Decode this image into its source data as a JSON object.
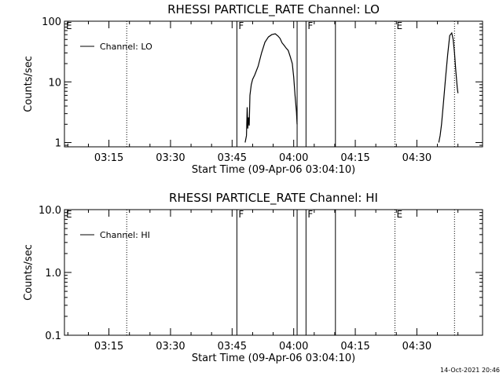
{
  "footer": "14-Oct-2021 20:46",
  "chart_data": [
    {
      "type": "line",
      "title": "RHESSI PARTICLE_RATE Channel: LO",
      "xlabel": "Start Time (09-Apr-06 03:04:10)",
      "ylabel": "Counts/sec",
      "yscale": "log",
      "ylim": [
        0.85,
        100
      ],
      "xlim": [
        "03:04:10",
        "04:46:00"
      ],
      "x_ticks": [
        "03:15",
        "03:30",
        "03:45",
        "04:00",
        "04:15",
        "04:30"
      ],
      "y_ticks": [
        "1",
        "10",
        "100"
      ],
      "legend": [
        "Channel: LO"
      ],
      "legend_position": "top-left",
      "markers": [
        {
          "label": "E",
          "time": "03:04:10",
          "style": "none"
        },
        {
          "label": "",
          "time": "03:19:20",
          "style": "dotted"
        },
        {
          "label": "F",
          "time": "03:46:10",
          "style": "solid"
        },
        {
          "label": "",
          "time": "04:00:50",
          "style": "solid"
        },
        {
          "label": "F",
          "time": "04:03:00",
          "style": "solid"
        },
        {
          "label": "",
          "time": "04:10:10",
          "style": "solid"
        },
        {
          "label": "E",
          "time": "04:24:40",
          "style": "dotted"
        },
        {
          "label": "",
          "time": "04:39:10",
          "style": "dotted"
        }
      ],
      "series": [
        {
          "name": "Channel: LO",
          "segments": [
            [
              [
                "03:48:10",
                1.0
              ],
              [
                "03:48:30",
                1.3
              ],
              [
                "03:48:40",
                3.8
              ],
              [
                "03:48:50",
                1.7
              ],
              [
                "03:49:00",
                2.6
              ],
              [
                "03:49:10",
                1.9
              ],
              [
                "03:49:20",
                6
              ],
              [
                "03:49:40",
                9
              ],
              [
                "03:50:00",
                11
              ],
              [
                "03:50:30",
                13
              ],
              [
                "03:51:20",
                18
              ],
              [
                "03:52:10",
                30
              ],
              [
                "03:53:00",
                45
              ],
              [
                "03:53:50",
                55
              ],
              [
                "03:54:40",
                60
              ],
              [
                "03:55:30",
                62
              ],
              [
                "03:56:10",
                57
              ],
              [
                "03:56:40",
                52
              ],
              [
                "03:57:10",
                44
              ],
              [
                "03:57:40",
                40
              ],
              [
                "03:58:10",
                36
              ],
              [
                "03:58:40",
                33
              ],
              [
                "03:59:10",
                26
              ],
              [
                "03:59:40",
                20
              ],
              [
                "04:00:00",
                12
              ],
              [
                "04:00:20",
                6
              ],
              [
                "04:00:40",
                3.2
              ],
              [
                "04:00:50",
                2.0
              ]
            ],
            [
              [
                "04:35:20",
                1.0
              ],
              [
                "04:35:40",
                1.3
              ],
              [
                "04:36:00",
                2
              ],
              [
                "04:36:30",
                4.8
              ],
              [
                "04:37:00",
                12
              ],
              [
                "04:37:30",
                28
              ],
              [
                "04:38:00",
                58
              ],
              [
                "04:38:30",
                64
              ],
              [
                "04:38:50",
                50
              ],
              [
                "04:39:10",
                30
              ],
              [
                "04:39:30",
                15
              ],
              [
                "04:39:50",
                8
              ],
              [
                "04:40:00",
                6.5
              ]
            ]
          ]
        }
      ]
    },
    {
      "type": "line",
      "title": "RHESSI PARTICLE_RATE Channel: HI",
      "xlabel": "Start Time (09-Apr-06 03:04:10)",
      "ylabel": "Counts/sec",
      "yscale": "log",
      "ylim": [
        0.1,
        10
      ],
      "xlim": [
        "03:04:10",
        "04:46:00"
      ],
      "x_ticks": [
        "03:15",
        "03:30",
        "03:45",
        "04:00",
        "04:15",
        "04:30"
      ],
      "y_ticks": [
        "0.1",
        "1.0",
        "10.0"
      ],
      "legend": [
        "Channel: HI"
      ],
      "legend_position": "top-left",
      "markers": [
        {
          "label": "E",
          "time": "03:04:10",
          "style": "none"
        },
        {
          "label": "",
          "time": "03:19:20",
          "style": "dotted"
        },
        {
          "label": "F",
          "time": "03:46:10",
          "style": "solid"
        },
        {
          "label": "",
          "time": "04:00:50",
          "style": "solid"
        },
        {
          "label": "F",
          "time": "04:03:00",
          "style": "solid"
        },
        {
          "label": "",
          "time": "04:10:10",
          "style": "solid"
        },
        {
          "label": "E",
          "time": "04:24:40",
          "style": "dotted"
        },
        {
          "label": "",
          "time": "04:39:10",
          "style": "dotted"
        }
      ],
      "series": [
        {
          "name": "Channel: HI",
          "segments": []
        }
      ]
    }
  ]
}
